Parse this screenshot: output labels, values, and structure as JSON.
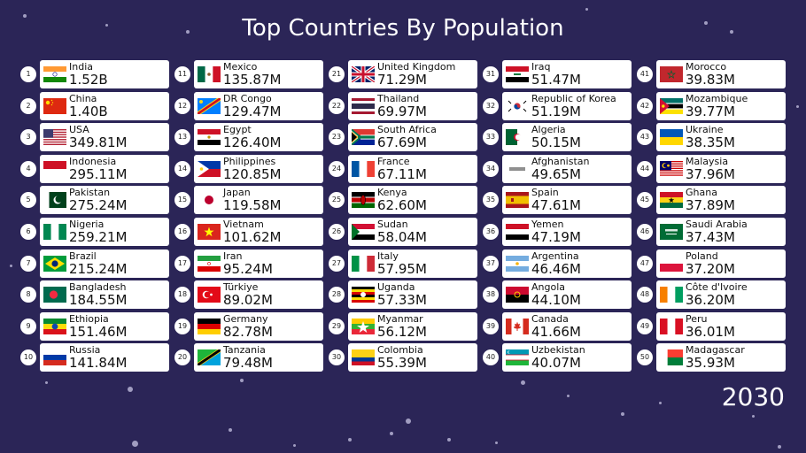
{
  "title": "Top Countries By Population",
  "year": "2030",
  "countries": [
    {
      "rank": "1",
      "name": "India",
      "population": "1.52B",
      "flag": "india-flag"
    },
    {
      "rank": "2",
      "name": "China",
      "population": "1.40B",
      "flag": "china-flag"
    },
    {
      "rank": "3",
      "name": "USA",
      "population": "349.81M",
      "flag": "usa-flag"
    },
    {
      "rank": "4",
      "name": "Indonesia",
      "population": "295.11M",
      "flag": "indonesia-flag"
    },
    {
      "rank": "5",
      "name": "Pakistan",
      "population": "275.24M",
      "flag": "pakistan-flag"
    },
    {
      "rank": "6",
      "name": "Nigeria",
      "population": "259.21M",
      "flag": "nigeria-flag"
    },
    {
      "rank": "7",
      "name": "Brazil",
      "population": "215.24M",
      "flag": "brazil-flag"
    },
    {
      "rank": "8",
      "name": "Bangladesh",
      "population": "184.55M",
      "flag": "bangladesh-flag"
    },
    {
      "rank": "9",
      "name": "Ethiopia",
      "population": "151.46M",
      "flag": "ethiopia-flag"
    },
    {
      "rank": "10",
      "name": "Russia",
      "population": "141.84M",
      "flag": "russia-flag"
    },
    {
      "rank": "11",
      "name": "Mexico",
      "population": "135.87M",
      "flag": "mexico-flag"
    },
    {
      "rank": "12",
      "name": "DR Congo",
      "population": "129.47M",
      "flag": "dr-congo-flag"
    },
    {
      "rank": "13",
      "name": "Egypt",
      "population": "126.40M",
      "flag": "egypt-flag"
    },
    {
      "rank": "14",
      "name": "Philippines",
      "population": "120.85M",
      "flag": "philippines-flag"
    },
    {
      "rank": "15",
      "name": "Japan",
      "population": "119.58M",
      "flag": "japan-flag"
    },
    {
      "rank": "16",
      "name": "Vietnam",
      "population": "101.62M",
      "flag": "vietnam-flag"
    },
    {
      "rank": "17",
      "name": "Iran",
      "population": "95.24M",
      "flag": "iran-flag"
    },
    {
      "rank": "18",
      "name": "Türkiye",
      "population": "89.02M",
      "flag": "turkiye-flag"
    },
    {
      "rank": "19",
      "name": "Germany",
      "population": "82.78M",
      "flag": "germany-flag"
    },
    {
      "rank": "20",
      "name": "Tanzania",
      "population": "79.48M",
      "flag": "tanzania-flag"
    },
    {
      "rank": "21",
      "name": "United Kingdom",
      "population": "71.29M",
      "flag": "uk-flag"
    },
    {
      "rank": "22",
      "name": "Thailand",
      "population": "69.97M",
      "flag": "thailand-flag"
    },
    {
      "rank": "23",
      "name": "South Africa",
      "population": "67.69M",
      "flag": "south-africa-flag"
    },
    {
      "rank": "24",
      "name": "France",
      "population": "67.11M",
      "flag": "france-flag"
    },
    {
      "rank": "25",
      "name": "Kenya",
      "population": "62.60M",
      "flag": "kenya-flag"
    },
    {
      "rank": "26",
      "name": "Sudan",
      "population": "58.04M",
      "flag": "sudan-flag"
    },
    {
      "rank": "27",
      "name": "Italy",
      "population": "57.95M",
      "flag": "italy-flag"
    },
    {
      "rank": "28",
      "name": "Uganda",
      "population": "57.33M",
      "flag": "uganda-flag"
    },
    {
      "rank": "29",
      "name": "Myanmar",
      "population": "56.12M",
      "flag": "myanmar-flag"
    },
    {
      "rank": "30",
      "name": "Colombia",
      "population": "55.39M",
      "flag": "colombia-flag"
    },
    {
      "rank": "31",
      "name": "Iraq",
      "population": "51.47M",
      "flag": "iraq-flag"
    },
    {
      "rank": "32",
      "name": "Republic of Korea",
      "population": "51.19M",
      "flag": "korea-flag"
    },
    {
      "rank": "33",
      "name": "Algeria",
      "population": "50.15M",
      "flag": "algeria-flag"
    },
    {
      "rank": "34",
      "name": "Afghanistan",
      "population": "49.65M",
      "flag": "afghanistan-flag"
    },
    {
      "rank": "35",
      "name": "Spain",
      "population": "47.61M",
      "flag": "spain-flag"
    },
    {
      "rank": "36",
      "name": "Yemen",
      "population": "47.19M",
      "flag": "yemen-flag"
    },
    {
      "rank": "37",
      "name": "Argentina",
      "population": "46.46M",
      "flag": "argentina-flag"
    },
    {
      "rank": "38",
      "name": "Angola",
      "population": "44.10M",
      "flag": "angola-flag"
    },
    {
      "rank": "39",
      "name": "Canada",
      "population": "41.66M",
      "flag": "canada-flag"
    },
    {
      "rank": "40",
      "name": "Uzbekistan",
      "population": "40.07M",
      "flag": "uzbekistan-flag"
    },
    {
      "rank": "41",
      "name": "Morocco",
      "population": "39.83M",
      "flag": "morocco-flag"
    },
    {
      "rank": "42",
      "name": "Mozambique",
      "population": "39.77M",
      "flag": "mozambique-flag"
    },
    {
      "rank": "43",
      "name": "Ukraine",
      "population": "38.35M",
      "flag": "ukraine-flag"
    },
    {
      "rank": "44",
      "name": "Malaysia",
      "population": "37.96M",
      "flag": "malaysia-flag"
    },
    {
      "rank": "45",
      "name": "Ghana",
      "population": "37.89M",
      "flag": "ghana-flag"
    },
    {
      "rank": "46",
      "name": "Saudi Arabia",
      "population": "37.43M",
      "flag": "saudi-arabia-flag"
    },
    {
      "rank": "47",
      "name": "Poland",
      "population": "37.20M",
      "flag": "poland-flag"
    },
    {
      "rank": "48",
      "name": "Côte d'Ivoire",
      "population": "36.20M",
      "flag": "cote-divoire-flag"
    },
    {
      "rank": "49",
      "name": "Peru",
      "population": "36.01M",
      "flag": "peru-flag"
    },
    {
      "rank": "50",
      "name": "Madagascar",
      "population": "35.93M",
      "flag": "madagascar-flag"
    }
  ]
}
